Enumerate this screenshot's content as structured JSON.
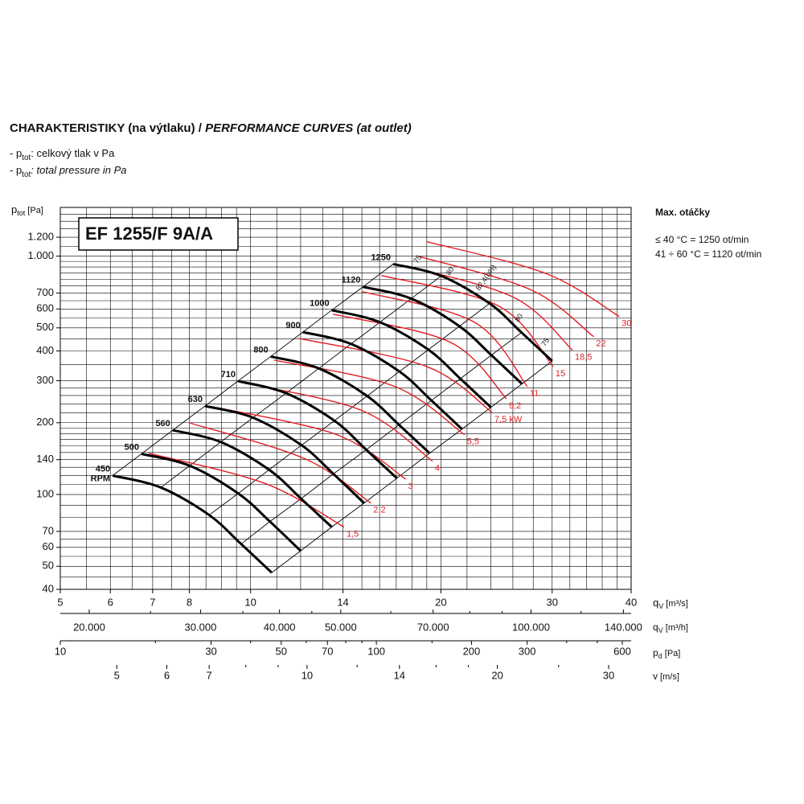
{
  "chart_data": {
    "type": "line",
    "title": "CHARAKTERISTIKY (na výtlaku) / ",
    "title_italic": "PERFORMANCE CURVES (at outlet)",
    "notes": [
      {
        "lead": "- p",
        "sub": "tot",
        "text": ": celkový tlak v Pa"
      },
      {
        "lead": "- p",
        "sub": "tot",
        "text": ": total pressure in Pa"
      }
    ],
    "model": "EF 1255/F 9A/A",
    "ylabel": {
      "main": "p",
      "sub": "tot",
      "unit": " [Pa]"
    },
    "xlabel": {
      "main": "q",
      "sub": "V",
      "unit": " [m³/s]"
    },
    "xlim": [
      5,
      40
    ],
    "ylim": [
      40,
      1600
    ],
    "log_x": true,
    "log_y": true,
    "grid": true,
    "xticks": [
      5,
      6,
      7,
      8,
      10,
      14,
      20,
      30,
      40
    ],
    "yticks": [
      40,
      50,
      60,
      70,
      100,
      140,
      200,
      300,
      400,
      500,
      600,
      700,
      {
        "value": 1000,
        "label": "1.000"
      },
      {
        "value": 1200,
        "label": "1.200"
      }
    ],
    "xgrid": [
      5,
      5.5,
      6,
      6.5,
      7,
      7.5,
      8,
      8.5,
      9,
      9.5,
      10,
      11,
      12,
      13,
      14,
      15,
      16,
      17,
      18,
      19,
      20,
      22,
      24,
      26,
      28,
      30,
      32,
      34,
      36,
      38,
      40
    ],
    "ygrid": [
      40,
      45,
      50,
      55,
      60,
      65,
      70,
      80,
      90,
      100,
      110,
      120,
      130,
      140,
      150,
      160,
      170,
      180,
      190,
      200,
      220,
      240,
      260,
      280,
      300,
      350,
      400,
      450,
      500,
      550,
      600,
      650,
      700,
      750,
      800,
      850,
      900,
      950,
      1000,
      1100,
      1200,
      1300,
      1400,
      1500,
      1600
    ],
    "rpm_unit": "RPM",
    "curves": [
      {
        "name": "450",
        "color": "#000000",
        "q": [
          6.05,
          7.21,
          8.6,
          9.66,
          10.8
        ],
        "p": [
          120,
          107,
          82,
          62,
          47
        ]
      },
      {
        "name": "500",
        "color": "#000000",
        "q": [
          6.72,
          8.01,
          9.56,
          10.73,
          12.0
        ],
        "p": [
          148,
          132,
          101,
          77,
          58
        ]
      },
      {
        "name": "560",
        "color": "#000000",
        "q": [
          7.53,
          8.97,
          10.7,
          12.02,
          13.44
        ],
        "p": [
          186,
          166,
          127,
          96,
          73
        ]
      },
      {
        "name": "630",
        "color": "#000000",
        "q": [
          8.47,
          10.09,
          12.04,
          13.52,
          15.12
        ],
        "p": [
          235,
          210,
          161,
          122,
          92
        ]
      },
      {
        "name": "710",
        "color": "#000000",
        "q": [
          9.55,
          11.38,
          13.57,
          15.24,
          17.04
        ],
        "p": [
          299,
          266,
          204,
          154,
          117
        ]
      },
      {
        "name": "800",
        "color": "#000000",
        "q": [
          10.76,
          12.82,
          15.29,
          17.17,
          19.2
        ],
        "p": [
          379,
          338,
          259,
          196,
          149
        ]
      },
      {
        "name": "900",
        "color": "#000000",
        "q": [
          12.1,
          14.42,
          17.2,
          19.32,
          21.6
        ],
        "p": [
          480,
          428,
          328,
          248,
          188
        ]
      },
      {
        "name": "1000",
        "color": "#000000",
        "q": [
          13.44,
          16.02,
          19.11,
          21.47,
          24.0
        ],
        "p": [
          593,
          528,
          405,
          306,
          232
        ]
      },
      {
        "name": "1120",
        "color": "#000000",
        "q": [
          15.06,
          17.95,
          21.4,
          24.04,
          26.88
        ],
        "p": [
          743,
          663,
          508,
          384,
          291
        ]
      },
      {
        "name": "1250",
        "color": "#000000",
        "q": [
          16.81,
          20.03,
          23.89,
          26.83,
          30.0
        ],
        "p": [
          926,
          826,
          633,
          478,
          363
        ]
      }
    ],
    "power_lines": [
      {
        "name": "1,5",
        "color": "#e31e24",
        "q": [
          6.9,
          10.56,
          14.06
        ],
        "p": [
          149,
          111,
          73
        ]
      },
      {
        "name": "2,2",
        "color": "#e31e24",
        "q": [
          7.99,
          12.2,
          15.5
        ],
        "p": [
          200,
          141,
          92
        ]
      },
      {
        "name": "3",
        "color": "#e31e24",
        "q": [
          8.72,
          13.7,
          17.6
        ],
        "p": [
          233,
          178,
          116
        ]
      },
      {
        "name": "4",
        "color": "#e31e24",
        "q": [
          9.66,
          15.0,
          19.4
        ],
        "p": [
          295,
          225,
          138
        ]
      },
      {
        "name": "5,5",
        "color": "#e31e24",
        "q": [
          10.9,
          16.9,
          21.8
        ],
        "p": [
          366,
          284,
          178
        ]
      },
      {
        "name": "7,5 kW",
        "color": "#e31e24",
        "q": [
          11.9,
          19.0,
          24.1
        ],
        "p": [
          452,
          344,
          221
        ]
      },
      {
        "name": "9,2",
        "color": "#e31e24",
        "q": [
          13.5,
          20.7,
          25.4
        ],
        "p": [
          571,
          435,
          252
        ]
      },
      {
        "name": "11",
        "color": "#e31e24",
        "q": [
          15.0,
          22.6,
          27.4
        ],
        "p": [
          710,
          528,
          284
        ]
      },
      {
        "name": "15",
        "color": "#e31e24",
        "q": [
          16.1,
          24.7,
          30.1
        ],
        "p": [
          830,
          617,
          344
        ]
      },
      {
        "name": "18,5",
        "color": "#e31e24",
        "q": [
          17.6,
          26.2,
          32.3
        ],
        "p": [
          911,
          667,
          403
        ]
      },
      {
        "name": "22",
        "color": "#e31e24",
        "q": [
          18.4,
          27.8,
          34.9
        ],
        "p": [
          1000,
          721,
          459
        ]
      },
      {
        "name": "30",
        "color": "#e31e24",
        "q": [
          19.0,
          29.4,
          38.3
        ],
        "p": [
          1150,
          843,
          558
        ]
      }
    ],
    "efficiency_labels": [
      {
        "text": "75",
        "q": 18.4,
        "p": 969
      },
      {
        "text": "80",
        "q": 20.7,
        "p": 863
      },
      {
        "text": "82,4(η%)",
        "q": 23.6,
        "p": 811
      },
      {
        "text": "80",
        "q": 26.6,
        "p": 550
      },
      {
        "text": "75",
        "q": 29.3,
        "p": 435
      }
    ],
    "secondary_axes": [
      {
        "label": {
          "main": "q",
          "sub": "V",
          "unit": " [m³/h]"
        },
        "lim": [
          18000,
          144000
        ],
        "ticks": [
          {
            "value": 20000,
            "label": "20.000"
          },
          {
            "value": 30000,
            "label": "30.000"
          },
          {
            "value": 40000,
            "label": "40.000"
          },
          {
            "value": 50000,
            "label": "50.000"
          },
          {
            "value": 70000,
            "label": "70.000"
          },
          {
            "value": 100000,
            "label": "100.000"
          },
          {
            "value": 140000,
            "label": "140.000"
          }
        ],
        "minor_ticks": [
          25000,
          35000,
          45000,
          60000,
          80000,
          90000,
          120000
        ]
      },
      {
        "label": {
          "main": "p",
          "sub": "d",
          "unit": " [Pa]"
        },
        "lim": [
          10,
          640
        ],
        "ticks": [
          10,
          30,
          50,
          70,
          100,
          200,
          300,
          600
        ],
        "minor_ticks": [
          20,
          40,
          60,
          80,
          90,
          150,
          400,
          500
        ]
      },
      {
        "label": {
          "main": "v",
          "unit": " [m/s]"
        },
        "lim": [
          4.07,
          32.56
        ],
        "ticks": [
          5,
          6,
          7,
          10,
          14,
          20,
          30
        ],
        "minor_ticks": [
          8,
          9,
          12,
          16,
          18,
          25
        ]
      }
    ],
    "side_note": {
      "title": "Max. otáčky",
      "lines": [
        "≤ 40 °C = 1250 ot/min",
        "41 ÷ 60 °C = 1120 ot/min"
      ]
    }
  }
}
